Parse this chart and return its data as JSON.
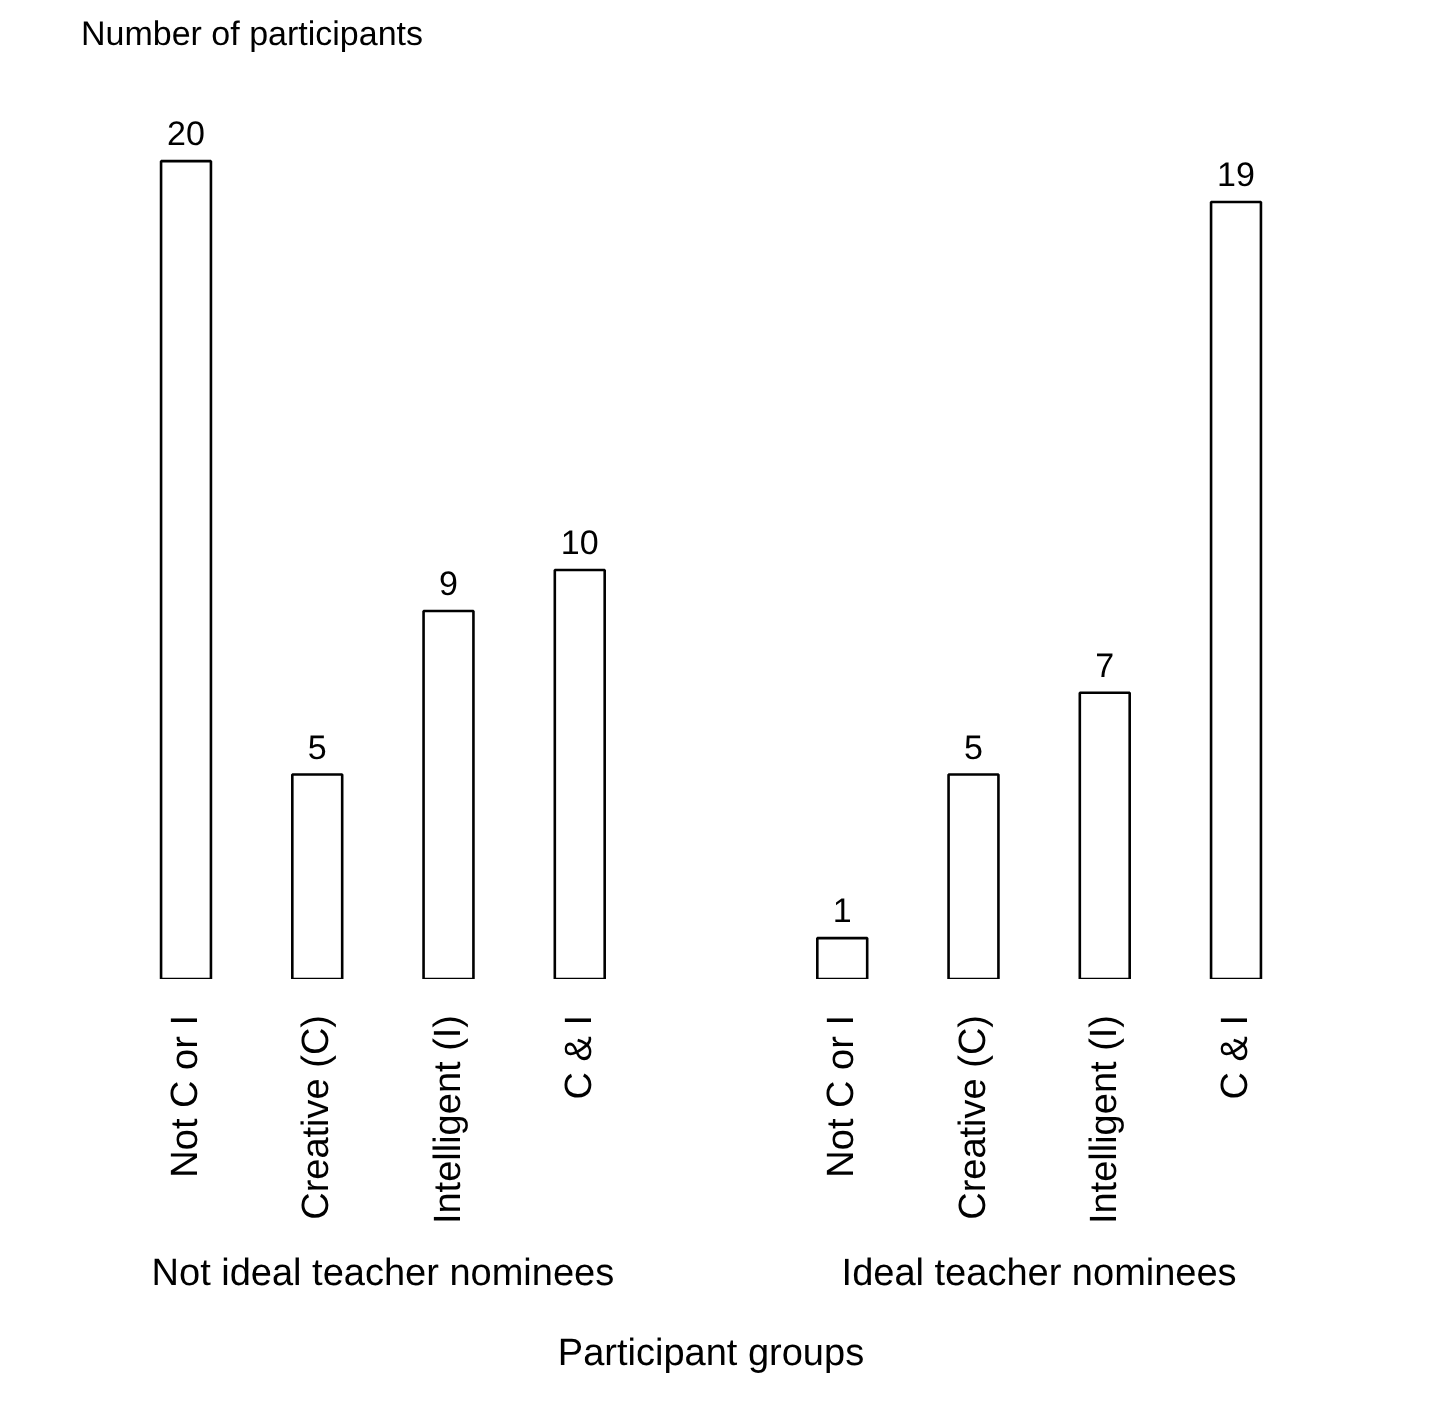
{
  "chart_data": {
    "type": "bar",
    "title": "Number of participants",
    "xlabel": "Participant groups",
    "categories": [
      "Not C or I",
      "Creative (C)",
      "Intelligent (I)",
      "C & I",
      "Not C or I",
      "Creative (C)",
      "Intelligent (I)",
      "C & I"
    ],
    "values": [
      20,
      5,
      9,
      10,
      1,
      5,
      7,
      19
    ],
    "color": "#ffffff",
    "data_labels": true,
    "grid": false,
    "annotations": [
      "Not ideal teacher nominees",
      "Ideal teacher nominees"
    ]
  }
}
